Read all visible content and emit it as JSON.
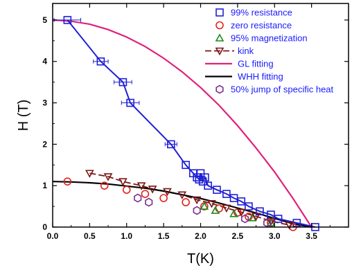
{
  "chart_data": {
    "type": "scatter",
    "xlabel": "T(K)",
    "ylabel": "H (T)",
    "xlim": [
      0.0,
      4.0
    ],
    "ylim": [
      0.0,
      5.4
    ],
    "x_ticks": [
      "0.0",
      "0.5",
      "1.0",
      "1.5",
      "2.0",
      "2.5",
      "3.0",
      "3.5"
    ],
    "y_ticks": [
      "0",
      "1",
      "2",
      "3",
      "4",
      "5"
    ],
    "legend_position": "top-right",
    "series": [
      {
        "name": "99% resistance",
        "kind": "markers",
        "marker": "square",
        "color": "#1f1fd6",
        "x": [
          0.2,
          0.65,
          0.95,
          1.05,
          1.6,
          1.8,
          1.9,
          1.95,
          1.98,
          2.0,
          2.03,
          2.06,
          2.1,
          2.22,
          2.35,
          2.45,
          2.55,
          2.65,
          2.8,
          2.95,
          3.05,
          3.3,
          3.55
        ],
        "y": [
          5.0,
          4.0,
          3.5,
          3.0,
          2.0,
          1.5,
          1.3,
          1.2,
          1.15,
          1.3,
          1.1,
          1.2,
          1.0,
          0.9,
          0.8,
          0.7,
          0.62,
          0.5,
          0.38,
          0.3,
          0.2,
          0.1,
          0.0
        ],
        "xerr": [
          0.18,
          0.1,
          0.12,
          0.12,
          0.08,
          0.0,
          0.0,
          0.0,
          0.0,
          0.0,
          0.0,
          0.0,
          0.0,
          0.0,
          0.0,
          0.0,
          0.0,
          0.0,
          0.0,
          0.0,
          0.0,
          0.0,
          0.0
        ]
      },
      {
        "name": "zero resistance",
        "kind": "markers",
        "marker": "circle",
        "color": "#e0241b",
        "x": [
          0.2,
          0.7,
          1.0,
          1.25,
          1.5,
          1.8,
          2.05,
          2.25,
          2.5,
          2.65,
          2.95,
          3.25
        ],
        "y": [
          1.1,
          1.0,
          0.9,
          0.8,
          0.7,
          0.6,
          0.5,
          0.45,
          0.35,
          0.25,
          0.1,
          0.0
        ]
      },
      {
        "name": "95% magnetization",
        "kind": "markers",
        "marker": "triangle-up",
        "color": "#1b8a1b",
        "x": [
          2.05,
          2.2,
          2.45,
          2.7,
          2.95
        ],
        "y": [
          0.5,
          0.4,
          0.32,
          0.22,
          0.1
        ]
      },
      {
        "name": "kink",
        "kind": "line+markers",
        "marker": "triangle-down",
        "color": "#7a1515",
        "x": [
          0.5,
          0.75,
          0.95,
          1.2,
          1.35,
          1.55,
          1.75,
          1.95,
          2.15,
          2.35,
          2.55,
          2.75,
          2.95,
          3.2
        ],
        "y": [
          1.3,
          1.22,
          1.1,
          1.0,
          0.92,
          0.86,
          0.78,
          0.66,
          0.57,
          0.46,
          0.36,
          0.26,
          0.14,
          0.05
        ]
      },
      {
        "name": "GL fitting",
        "kind": "line",
        "color": "#e0207a",
        "x": [
          0.0,
          0.25,
          0.5,
          0.75,
          1.0,
          1.25,
          1.5,
          1.75,
          2.0,
          2.25,
          2.5,
          2.75,
          3.0,
          3.25,
          3.5
        ],
        "y": [
          5.0,
          4.97,
          4.9,
          4.77,
          4.59,
          4.36,
          4.08,
          3.75,
          3.37,
          2.94,
          2.45,
          1.91,
          1.33,
          0.69,
          0.0
        ]
      },
      {
        "name": "WHH fitting",
        "kind": "line",
        "color": "#000000",
        "x": [
          0.0,
          0.25,
          0.5,
          0.75,
          1.0,
          1.25,
          1.5,
          1.75,
          2.0,
          2.25,
          2.5,
          2.75,
          3.0,
          3.25,
          3.5
        ],
        "y": [
          1.1,
          1.09,
          1.07,
          1.04,
          0.99,
          0.94,
          0.87,
          0.78,
          0.69,
          0.58,
          0.46,
          0.34,
          0.21,
          0.08,
          0.0
        ]
      },
      {
        "name": "50%  jump of specific heat",
        "kind": "markers",
        "marker": "hexagon",
        "color": "#7b2d8e",
        "x": [
          1.15,
          1.3,
          1.95,
          2.6,
          2.9
        ],
        "y": [
          0.7,
          0.6,
          0.4,
          0.2,
          0.1
        ]
      }
    ]
  }
}
